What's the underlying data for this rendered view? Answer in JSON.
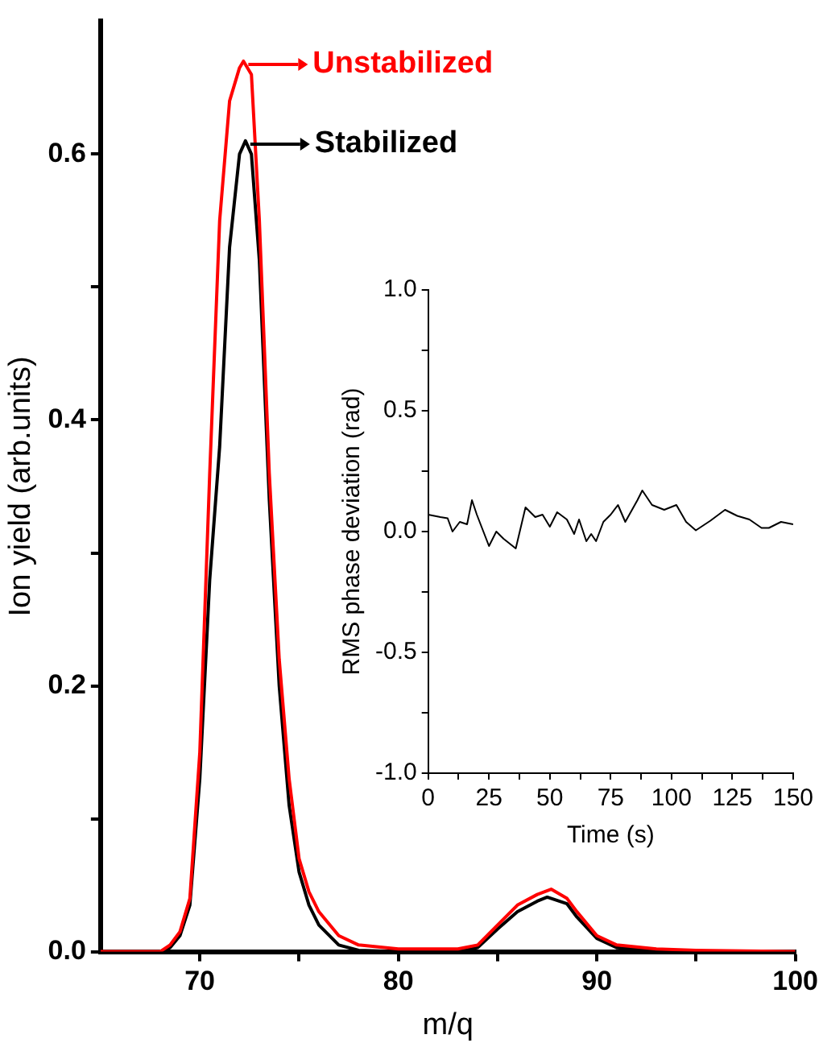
{
  "chart_data": [
    {
      "type": "line",
      "xlabel": "m/q",
      "ylabel": "Ion yield (arb.units)",
      "xlim": [
        65,
        100
      ],
      "ylim": [
        0,
        0.7
      ],
      "xticks": [
        70,
        {
          "value": 75,
          "label": null
        },
        80,
        {
          "value": 85,
          "label": null
        },
        90,
        {
          "value": 95,
          "label": null
        },
        100
      ],
      "yticks": [
        {
          "value": 0,
          "label": "0.0"
        },
        {
          "value": 0.1,
          "label": null
        },
        0.2,
        {
          "value": 0.3,
          "label": null
        },
        0.4,
        {
          "value": 0.5,
          "label": null
        },
        0.6
      ],
      "legend": "top",
      "grid": false,
      "marker": "none",
      "line_style": "solid",
      "series": [
        {
          "name": "Unstabilized",
          "color": "#ff0000",
          "x": [
            65,
            67,
            68,
            68.5,
            69,
            69.5,
            70,
            70.5,
            71,
            71.5,
            72,
            72.2,
            72.6,
            73,
            73.5,
            74,
            74.5,
            75,
            75.5,
            76,
            77,
            78,
            80,
            83,
            84,
            85,
            86,
            87,
            87.7,
            88.5,
            89,
            90,
            91,
            93,
            95,
            100
          ],
          "values": [
            0,
            0,
            0,
            0.005,
            0.015,
            0.04,
            0.15,
            0.36,
            0.55,
            0.64,
            0.665,
            0.67,
            0.66,
            0.55,
            0.36,
            0.22,
            0.13,
            0.07,
            0.045,
            0.03,
            0.012,
            0.005,
            0.002,
            0.002,
            0.005,
            0.02,
            0.035,
            0.043,
            0.047,
            0.04,
            0.03,
            0.012,
            0.005,
            0.002,
            0.001,
            0
          ]
        },
        {
          "name": "Stabilized",
          "color": "#000000",
          "x": [
            65,
            67,
            68,
            68.5,
            69,
            69.5,
            70,
            70.5,
            71,
            71.5,
            72,
            72.3,
            72.6,
            73,
            73.5,
            74,
            74.5,
            75,
            75.5,
            76,
            77,
            78,
            80,
            83,
            84,
            85,
            86,
            87,
            87.5,
            88.5,
            89,
            90,
            91,
            93,
            95,
            100
          ],
          "values": [
            0,
            0,
            0,
            0.003,
            0.012,
            0.035,
            0.13,
            0.28,
            0.38,
            0.53,
            0.6,
            0.61,
            0.6,
            0.52,
            0.34,
            0.2,
            0.11,
            0.06,
            0.035,
            0.02,
            0.005,
            0.001,
            0,
            0,
            0.003,
            0.017,
            0.03,
            0.038,
            0.041,
            0.036,
            0.026,
            0.01,
            0.003,
            0.001,
            0,
            0
          ]
        }
      ]
    },
    {
      "type": "line",
      "xlabel": "Time (s)",
      "ylabel": "RMS phase deviation (rad)",
      "xlim": [
        0,
        150
      ],
      "ylim": [
        -1,
        1
      ],
      "xticks": [
        0,
        {
          "value": 12.5,
          "label": null
        },
        25,
        {
          "value": 37.5,
          "label": null
        },
        50,
        {
          "value": 62.5,
          "label": null
        },
        75,
        {
          "value": 87.5,
          "label": null
        },
        100,
        {
          "value": 112.5,
          "label": null
        },
        125,
        {
          "value": 137.5,
          "label": null
        },
        150
      ],
      "yticks": [
        {
          "value": -1,
          "label": "-1.0"
        },
        {
          "value": -0.75,
          "label": null
        },
        {
          "value": -0.5,
          "label": "-0.5"
        },
        {
          "value": -0.25,
          "label": null
        },
        {
          "value": 0,
          "label": "0.0"
        },
        {
          "value": 0.25,
          "label": null
        },
        {
          "value": 0.5,
          "label": "0.5"
        },
        {
          "value": 0.75,
          "label": null
        },
        {
          "value": 1,
          "label": "1.0"
        }
      ],
      "grid": false,
      "marker": "none",
      "line_style": "solid",
      "series": [
        {
          "color": "#000000",
          "x": [
            0,
            5,
            8,
            10,
            13,
            16,
            18,
            20,
            25,
            28,
            31,
            36,
            40,
            44,
            47,
            50,
            53,
            57,
            60,
            62,
            65,
            67,
            69,
            72,
            75,
            78,
            81,
            86,
            88,
            92,
            97,
            102,
            106,
            110,
            116,
            122,
            127,
            132,
            137,
            140,
            145,
            150
          ],
          "values": [
            0.07,
            0.06,
            0.055,
            0,
            0.04,
            0.03,
            0.13,
            0.07,
            -0.06,
            0,
            -0.03,
            -0.07,
            0.1,
            0.06,
            0.07,
            0.02,
            0.08,
            0.05,
            -0.01,
            0.05,
            -0.04,
            -0.01,
            -0.04,
            0.04,
            0.07,
            0.11,
            0.04,
            0.13,
            0.17,
            0.11,
            0.09,
            0.11,
            0.04,
            0.005,
            0.045,
            0.09,
            0.065,
            0.05,
            0.015,
            0.015,
            0.04,
            0.03
          ]
        }
      ]
    }
  ]
}
